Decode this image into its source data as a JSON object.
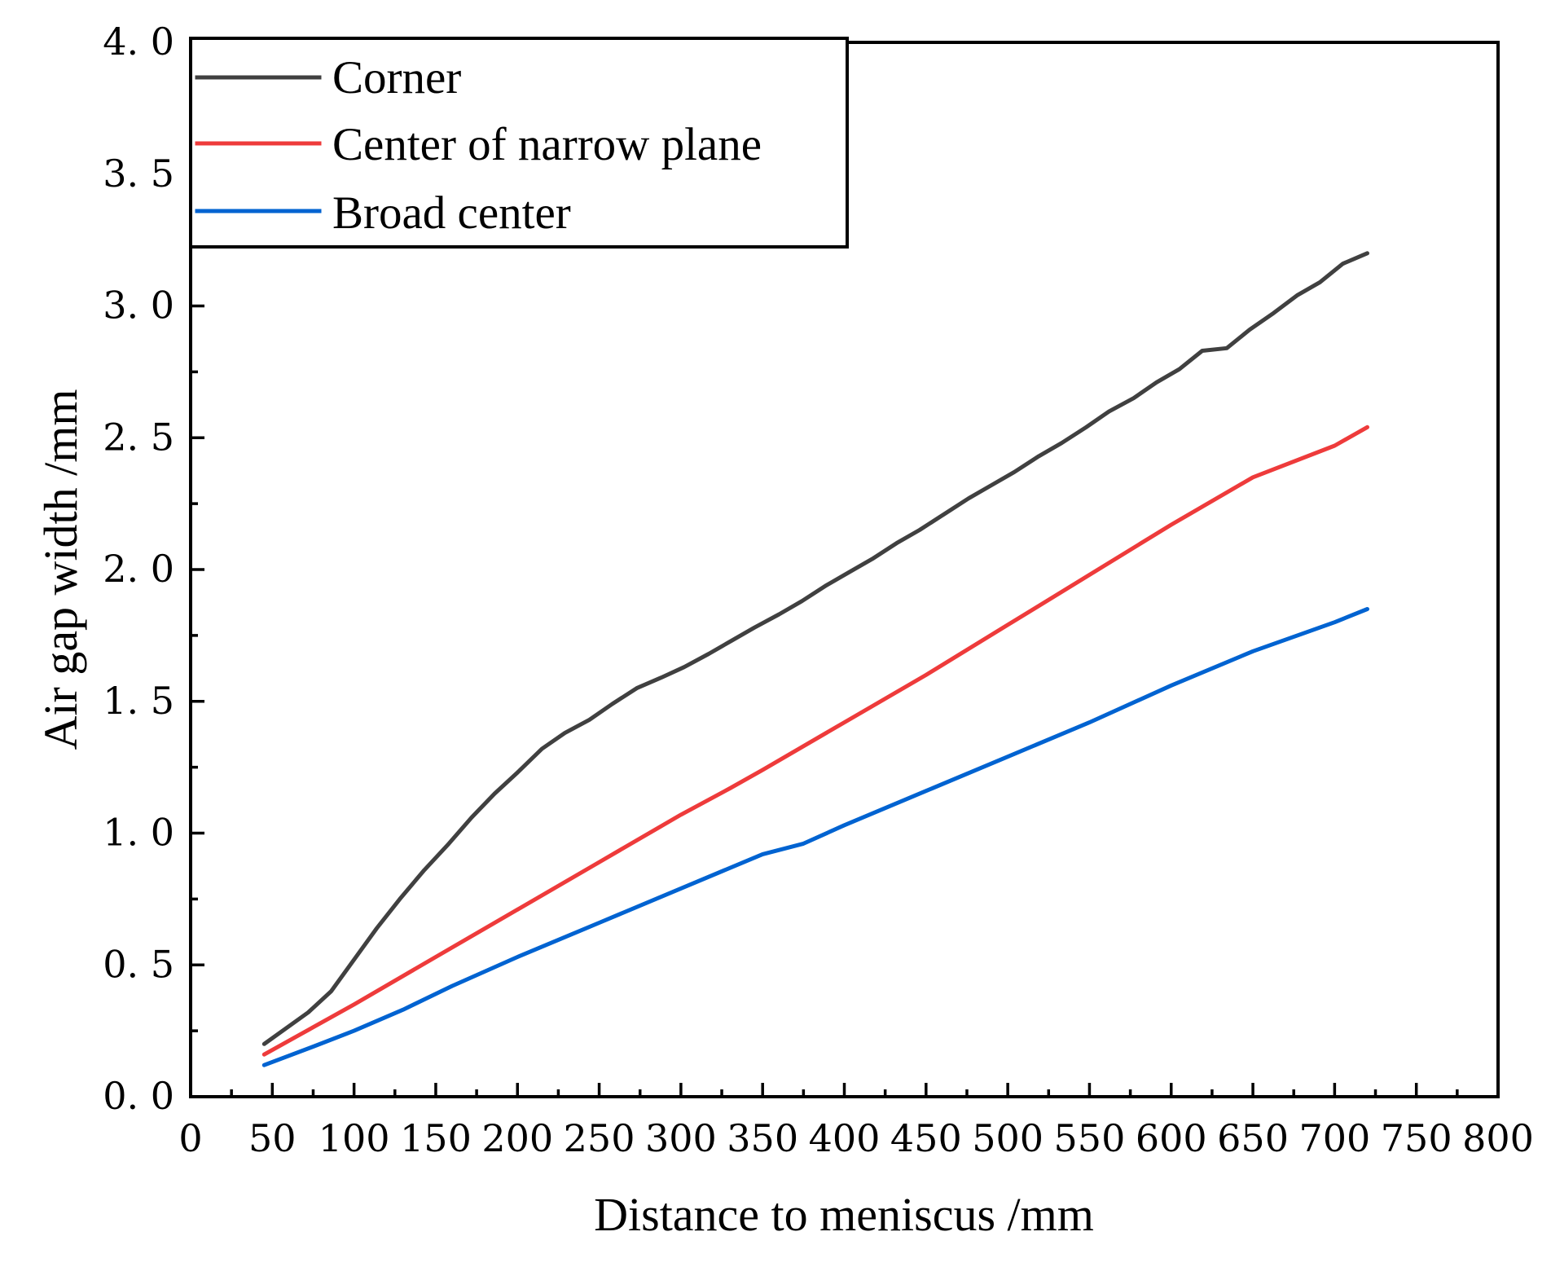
{
  "chart_data": {
    "type": "line",
    "title": "",
    "xlabel": "Distance to meniscus /mm",
    "ylabel": "Air gap width /mm",
    "xlim": [
      0,
      800
    ],
    "ylim": [
      0,
      4
    ],
    "x_ticks": [
      0,
      50,
      100,
      150,
      200,
      250,
      300,
      350,
      400,
      450,
      500,
      550,
      600,
      650,
      700,
      750,
      800
    ],
    "x_tick_labels": [
      "0",
      "50",
      "100",
      "150",
      "200",
      "250",
      "300",
      "350",
      "400",
      "450",
      "500",
      "550",
      "600",
      "650",
      "700",
      "750",
      "800"
    ],
    "y_ticks": [
      0,
      0.5,
      1.0,
      1.5,
      2.0,
      2.5,
      3.0,
      3.5,
      4.0
    ],
    "y_tick_labels": [
      "0. 0",
      "0. 5",
      "1. 0",
      "1. 5",
      "2. 0",
      "2. 5",
      "3. 0",
      "3. 5",
      "4. 0"
    ],
    "grid": false,
    "legend_position": "top-left",
    "series": [
      {
        "name": "Corner",
        "color": "#404040",
        "x": [
          45,
          72,
          86,
          100,
          114,
          128,
          143,
          158,
          172,
          186,
          200,
          215,
          229,
          244,
          258,
          273,
          288,
          302,
          317,
          331,
          345,
          360,
          374,
          389,
          403,
          417,
          432,
          446,
          461,
          476,
          490,
          504,
          519,
          533,
          548,
          562,
          577,
          591,
          605,
          619,
          634,
          648,
          662,
          677,
          691,
          705,
          720
        ],
        "y": [
          0.2,
          0.32,
          0.4,
          0.52,
          0.64,
          0.75,
          0.86,
          0.96,
          1.06,
          1.15,
          1.23,
          1.32,
          1.38,
          1.43,
          1.49,
          1.55,
          1.59,
          1.63,
          1.68,
          1.73,
          1.78,
          1.83,
          1.88,
          1.94,
          1.99,
          2.04,
          2.1,
          2.15,
          2.21,
          2.27,
          2.32,
          2.37,
          2.43,
          2.48,
          2.54,
          2.6,
          2.65,
          2.71,
          2.76,
          2.83,
          2.84,
          2.91,
          2.97,
          3.04,
          3.09,
          3.16,
          3.2
        ]
      },
      {
        "name": "Center of narrow plane",
        "color": "#ee3b3b",
        "x": [
          45,
          100,
          150,
          200,
          250,
          300,
          330,
          350,
          400,
          450,
          500,
          550,
          600,
          650,
          700,
          720
        ],
        "y": [
          0.16,
          0.35,
          0.53,
          0.71,
          0.89,
          1.07,
          1.17,
          1.24,
          1.42,
          1.6,
          1.79,
          1.98,
          2.17,
          2.35,
          2.47,
          2.54
        ]
      },
      {
        "name": "Broad center",
        "color": "#0063d1",
        "x": [
          45,
          75,
          100,
          130,
          160,
          200,
          250,
          300,
          350,
          375,
          400,
          450,
          500,
          550,
          600,
          650,
          700,
          720
        ],
        "y": [
          0.12,
          0.19,
          0.25,
          0.33,
          0.42,
          0.53,
          0.66,
          0.79,
          0.92,
          0.96,
          1.03,
          1.16,
          1.29,
          1.42,
          1.56,
          1.69,
          1.8,
          1.85
        ]
      }
    ]
  }
}
